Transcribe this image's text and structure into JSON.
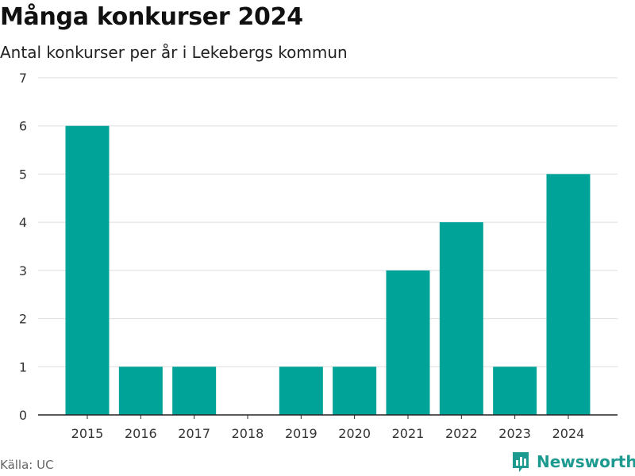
{
  "title": "Många konkurser 2024",
  "subtitle": "Antal konkurser per år i Lekebergs kommun",
  "source": "Källa: UC",
  "brand": {
    "name": "Newsworthy",
    "icon": "newsworthy-logo-icon"
  },
  "colors": {
    "bar": "#00a398",
    "grid": "#dddddd",
    "axis": "#222222",
    "brand": "#1d9a8f"
  },
  "chart_data": {
    "type": "bar",
    "title": "Många konkurser 2024",
    "subtitle": "Antal konkurser per år i Lekebergs kommun",
    "categories": [
      "2015",
      "2016",
      "2017",
      "2018",
      "2019",
      "2020",
      "2021",
      "2022",
      "2023",
      "2024"
    ],
    "values": [
      6,
      1,
      1,
      0,
      1,
      1,
      3,
      4,
      1,
      5
    ],
    "ylim": [
      0,
      7
    ],
    "yticks": [
      "0",
      "1",
      "2",
      "3",
      "4",
      "5",
      "6",
      "7"
    ],
    "grid": true,
    "legend": "none"
  }
}
